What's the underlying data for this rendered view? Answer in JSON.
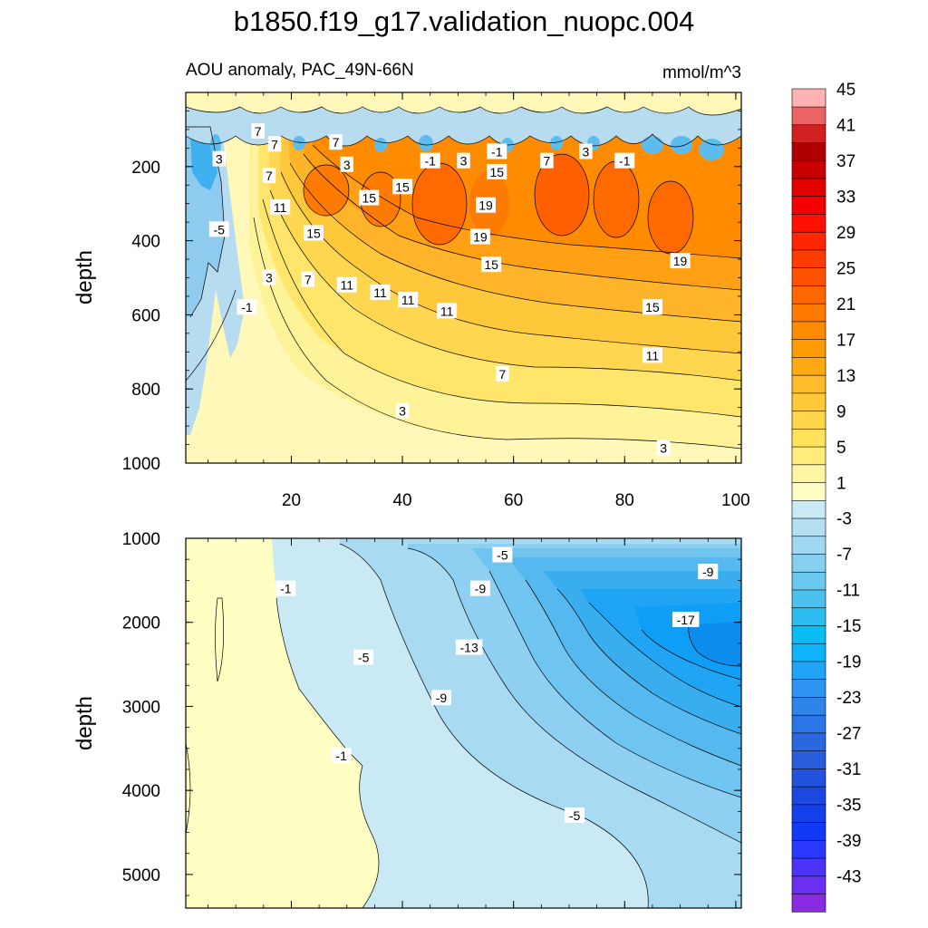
{
  "chart_data": {
    "type": "contour",
    "title": "b1850.f19_g17.validation_nuopc.004",
    "subtitle_left": "AOU anomaly, PAC_49N-66N",
    "units": "mmol/m^3",
    "x": {
      "range": [
        1,
        101
      ],
      "ticks": [
        20,
        40,
        60,
        80,
        100
      ],
      "tick_labels": [
        "20",
        "40",
        "60",
        "80",
        "100"
      ]
    },
    "panels": [
      {
        "name": "upper",
        "ylabel": "depth",
        "depth_range": [
          0,
          1000
        ],
        "depth_ticks": [
          200,
          400,
          600,
          800,
          1000
        ],
        "depth_tick_labels": [
          "200",
          "400",
          "600",
          "800",
          "1000"
        ],
        "contour_labels": [
          {
            "x": 7,
            "depth": 180,
            "text": "3"
          },
          {
            "x": 17,
            "depth": 140,
            "text": "7"
          },
          {
            "x": 14,
            "depth": 105,
            "text": "7"
          },
          {
            "x": 28,
            "depth": 135,
            "text": "7"
          },
          {
            "x": 30,
            "depth": 195,
            "text": "3"
          },
          {
            "x": 16,
            "depth": 225,
            "text": "7"
          },
          {
            "x": 7,
            "depth": 370,
            "text": "-5"
          },
          {
            "x": 18,
            "depth": 310,
            "text": "11"
          },
          {
            "x": 24,
            "depth": 380,
            "text": "15"
          },
          {
            "x": 34,
            "depth": 285,
            "text": "15"
          },
          {
            "x": 40,
            "depth": 255,
            "text": "15"
          },
          {
            "x": 45,
            "depth": 185,
            "text": "-1"
          },
          {
            "x": 51,
            "depth": 185,
            "text": "3"
          },
          {
            "x": 57,
            "depth": 215,
            "text": "15"
          },
          {
            "x": 57,
            "depth": 160,
            "text": "-1"
          },
          {
            "x": 66,
            "depth": 185,
            "text": "7"
          },
          {
            "x": 73,
            "depth": 160,
            "text": "3"
          },
          {
            "x": 80,
            "depth": 185,
            "text": "-1"
          },
          {
            "x": 55,
            "depth": 305,
            "text": "19"
          },
          {
            "x": 54,
            "depth": 390,
            "text": "19"
          },
          {
            "x": 56,
            "depth": 465,
            "text": "15"
          },
          {
            "x": 90,
            "depth": 455,
            "text": "19"
          },
          {
            "x": 85,
            "depth": 580,
            "text": "15"
          },
          {
            "x": 16,
            "depth": 500,
            "text": "3"
          },
          {
            "x": 23,
            "depth": 505,
            "text": "7"
          },
          {
            "x": 30,
            "depth": 520,
            "text": "11"
          },
          {
            "x": 36,
            "depth": 540,
            "text": "11"
          },
          {
            "x": 41,
            "depth": 560,
            "text": "11"
          },
          {
            "x": 48,
            "depth": 590,
            "text": "11"
          },
          {
            "x": 12,
            "depth": 580,
            "text": "-1"
          },
          {
            "x": 85,
            "depth": 710,
            "text": "11"
          },
          {
            "x": 58,
            "depth": 760,
            "text": "7"
          },
          {
            "x": 40,
            "depth": 860,
            "text": "3"
          },
          {
            "x": 87,
            "depth": 960,
            "text": "3"
          }
        ]
      },
      {
        "name": "lower",
        "ylabel": "depth",
        "depth_range": [
          1000,
          5400
        ],
        "depth_ticks": [
          1000,
          2000,
          3000,
          4000,
          5000
        ],
        "depth_tick_labels": [
          "1000",
          "2000",
          "3000",
          "4000",
          "5000"
        ],
        "contour_labels": [
          {
            "x": 58,
            "depth": 1200,
            "text": "-5"
          },
          {
            "x": 95,
            "depth": 1400,
            "text": "-9"
          },
          {
            "x": 54,
            "depth": 1600,
            "text": "-9"
          },
          {
            "x": 19,
            "depth": 1600,
            "text": "-1"
          },
          {
            "x": 91,
            "depth": 1970,
            "text": "-17"
          },
          {
            "x": 52,
            "depth": 2300,
            "text": "-13"
          },
          {
            "x": 33,
            "depth": 2420,
            "text": "-5"
          },
          {
            "x": 47,
            "depth": 2900,
            "text": "-9"
          },
          {
            "x": 29,
            "depth": 3590,
            "text": "-1"
          },
          {
            "x": 71,
            "depth": 4300,
            "text": "-5"
          }
        ]
      }
    ],
    "colorbar": {
      "levels": [
        -45,
        -43,
        -41,
        -39,
        -37,
        -35,
        -33,
        -31,
        -29,
        -27,
        -25,
        -23,
        -21,
        -19,
        -17,
        -15,
        -13,
        -11,
        -9,
        -7,
        -5,
        -3,
        -1,
        1,
        3,
        5,
        7,
        9,
        11,
        13,
        15,
        17,
        19,
        21,
        23,
        25,
        27,
        29,
        31,
        33,
        35,
        37,
        39,
        41,
        43,
        45
      ],
      "label_values": [
        -43,
        -39,
        -35,
        -31,
        -27,
        -23,
        -19,
        -15,
        -11,
        -7,
        -3,
        1,
        5,
        9,
        13,
        17,
        21,
        25,
        29,
        33,
        37,
        41,
        45
      ],
      "tick_labels": [
        "-43",
        "-39",
        "-35",
        "-31",
        "-27",
        "-23",
        "-19",
        "-15",
        "-11",
        "-7",
        "-3",
        "1",
        "5",
        "9",
        "13",
        "17",
        "21",
        "25",
        "29",
        "33",
        "37",
        "41",
        "45"
      ],
      "colors": [
        "#8a2be2",
        "#6b2ff0",
        "#4a34f7",
        "#2a38fb",
        "#1239f5",
        "#1640ea",
        "#1c48df",
        "#2352dc",
        "#275cdd",
        "#2b68e0",
        "#2c75e6",
        "#2f84ec",
        "#2e94f2",
        "#20a4f7",
        "#10b3f8",
        "#09bdf3",
        "#2cbdee",
        "#4cc1ee",
        "#6ac7ee",
        "#87cfef",
        "#a1d8f1",
        "#b6e0f2",
        "#c9e9f5",
        "#fffec3",
        "#fff5a3",
        "#ffec7c",
        "#ffe25c",
        "#ffd64a",
        "#ffc93a",
        "#ffbb2a",
        "#ffaa14",
        "#ff9b05",
        "#ff8c00",
        "#ff7b00",
        "#ff6800",
        "#ff5200",
        "#ff3c00",
        "#ff2600",
        "#ff1000",
        "#f50000",
        "#e20000",
        "#c80000",
        "#ae0000",
        "#d22020",
        "#ea6464",
        "#ffb2b2"
      ]
    }
  }
}
